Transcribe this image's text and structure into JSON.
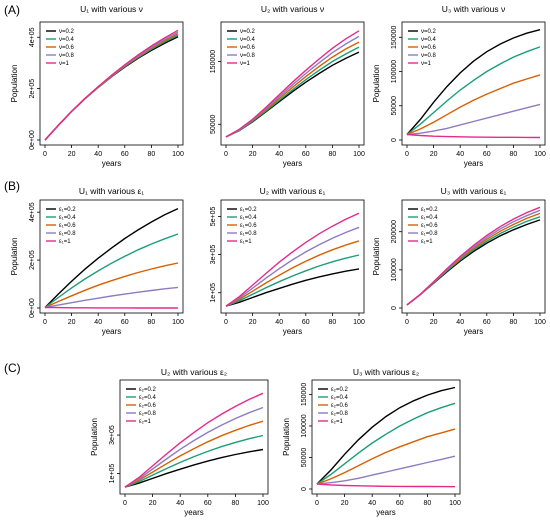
{
  "figure": {
    "rows": [
      {
        "label": "(A)"
      },
      {
        "label": "(B)"
      },
      {
        "label": "(C)"
      }
    ]
  },
  "legend_colors": [
    "#000000",
    "#1b9e77",
    "#d95f02",
    "#8e7cc3",
    "#e7298a"
  ],
  "chart_data": [
    {
      "type": "line",
      "panel": "A",
      "title": "U₁ with various ν",
      "xlabel": "years",
      "ylabel": "Population",
      "xlim": [
        0,
        100
      ],
      "ylim": [
        0,
        440000
      ],
      "xticks": [
        0,
        20,
        40,
        60,
        80,
        100
      ],
      "xtick_labels": [
        "0",
        "20",
        "40",
        "60",
        "80",
        "100"
      ],
      "yticks": [
        0,
        200000,
        400000
      ],
      "ytick_labels": [
        "0e+00",
        "2e+05",
        "4e+05"
      ],
      "x": [
        0,
        10,
        20,
        30,
        40,
        50,
        60,
        70,
        80,
        90,
        100
      ],
      "legend_placement": "top-left",
      "series": [
        {
          "name": "ν=0.2",
          "color": "#000000",
          "values": [
            0,
            57000,
            111000,
            160000,
            205000,
            246000,
            284000,
            318000,
            349000,
            377000,
            402000
          ]
        },
        {
          "name": "ν=0.4",
          "color": "#1b9e77",
          "values": [
            0,
            57000,
            111000,
            160000,
            205000,
            247000,
            286000,
            321000,
            353000,
            382000,
            408000
          ]
        },
        {
          "name": "ν=0.6",
          "color": "#d95f02",
          "values": [
            0,
            57000,
            111000,
            160000,
            206000,
            248000,
            288000,
            324000,
            357000,
            387000,
            414000
          ]
        },
        {
          "name": "ν=0.8",
          "color": "#8e7cc3",
          "values": [
            0,
            57000,
            111000,
            161000,
            207000,
            250000,
            290000,
            327000,
            361000,
            392000,
            420000
          ]
        },
        {
          "name": "ν=1",
          "color": "#e7298a",
          "values": [
            0,
            57000,
            112000,
            162000,
            208000,
            252000,
            293000,
            331000,
            366000,
            398000,
            427000
          ]
        }
      ]
    },
    {
      "type": "line",
      "panel": "A",
      "title": "U₂ with various ν",
      "xlabel": "years",
      "ylabel": "",
      "xlim": [
        0,
        100
      ],
      "ylim": [
        25000,
        205000
      ],
      "xticks": [
        0,
        20,
        40,
        60,
        80,
        100
      ],
      "xtick_labels": [
        "0",
        "20",
        "40",
        "60",
        "80",
        "100"
      ],
      "yticks": [
        50000,
        150000
      ],
      "ytick_labels": [
        "50000",
        "150000"
      ],
      "x": [
        0,
        10,
        20,
        30,
        40,
        50,
        60,
        70,
        80,
        90,
        100
      ],
      "legend_placement": "top-left",
      "series": [
        {
          "name": "ν=0.2",
          "color": "#000000",
          "values": [
            30000,
            40000,
            54000,
            70000,
            86000,
            102000,
            117000,
            131000,
            144000,
            155000,
            165000
          ]
        },
        {
          "name": "ν=0.4",
          "color": "#1b9e77",
          "values": [
            30000,
            40000,
            55000,
            71000,
            88000,
            105000,
            121000,
            136000,
            150000,
            162000,
            173000
          ]
        },
        {
          "name": "ν=0.6",
          "color": "#d95f02",
          "values": [
            30000,
            41000,
            56000,
            73000,
            91000,
            109000,
            126000,
            142000,
            157000,
            170000,
            181000
          ]
        },
        {
          "name": "ν=0.8",
          "color": "#8e7cc3",
          "values": [
            30000,
            41000,
            57000,
            75000,
            94000,
            113000,
            131000,
            148000,
            164000,
            178000,
            190000
          ]
        },
        {
          "name": "ν=1",
          "color": "#e7298a",
          "values": [
            30000,
            42000,
            58000,
            77000,
            97000,
            117000,
            136000,
            154000,
            171000,
            186000,
            199000
          ]
        }
      ]
    },
    {
      "type": "line",
      "panel": "A",
      "title": "U₃ with various ν",
      "xlabel": "years",
      "ylabel": "Population",
      "xlim": [
        0,
        100
      ],
      "ylim": [
        0,
        165000
      ],
      "xticks": [
        0,
        20,
        40,
        60,
        80,
        100
      ],
      "xtick_labels": [
        "0",
        "20",
        "40",
        "60",
        "80",
        "100"
      ],
      "yticks": [
        0,
        50000,
        100000,
        150000
      ],
      "ytick_labels": [
        "0",
        "50000",
        "100000",
        "150000"
      ],
      "x": [
        0,
        10,
        20,
        30,
        40,
        50,
        60,
        70,
        80,
        90,
        100
      ],
      "legend_placement": "top-left",
      "series": [
        {
          "name": "ν=0.2",
          "color": "#000000",
          "values": [
            8000,
            30000,
            55000,
            78000,
            98000,
            115000,
            129000,
            140000,
            149000,
            156000,
            161000
          ]
        },
        {
          "name": "ν=0.4",
          "color": "#1b9e77",
          "values": [
            8000,
            23000,
            40000,
            57000,
            73000,
            87000,
            100000,
            111000,
            121000,
            129000,
            136000
          ]
        },
        {
          "name": "ν=0.6",
          "color": "#d95f02",
          "values": [
            8000,
            16000,
            26000,
            37000,
            48000,
            58000,
            67000,
            75000,
            83000,
            89000,
            95000
          ]
        },
        {
          "name": "ν=0.8",
          "color": "#8e7cc3",
          "values": [
            8000,
            10000,
            13000,
            17000,
            22000,
            27000,
            32000,
            37000,
            42000,
            47000,
            52000
          ]
        },
        {
          "name": "ν=1",
          "color": "#e7298a",
          "values": [
            8000,
            6500,
            5500,
            5000,
            4600,
            4300,
            4100,
            4000,
            3900,
            3800,
            3700
          ]
        }
      ]
    },
    {
      "type": "line",
      "panel": "B",
      "title": "U₁ with various ε₁",
      "xlabel": "years",
      "ylabel": "Population",
      "xlim": [
        0,
        100
      ],
      "ylim": [
        0,
        430000
      ],
      "xticks": [
        0,
        20,
        40,
        60,
        80,
        100
      ],
      "xtick_labels": [
        "0",
        "20",
        "40",
        "60",
        "80",
        "100"
      ],
      "yticks": [
        0,
        200000,
        400000
      ],
      "ytick_labels": [
        "0e+00",
        "2e+05",
        "4e+05"
      ],
      "x": [
        0,
        10,
        20,
        30,
        40,
        50,
        60,
        70,
        80,
        90,
        100
      ],
      "legend_placement": "top-left",
      "series": [
        {
          "name": "ε₁=0.2",
          "color": "#000000",
          "values": [
            2000,
            58000,
            112000,
            162000,
            208000,
            250000,
            290000,
            326000,
            359000,
            389000,
            415000
          ]
        },
        {
          "name": "ε₁=0.4",
          "color": "#1b9e77",
          "values": [
            2000,
            44000,
            84000,
            121000,
            155000,
            187000,
            216000,
            243000,
            267000,
            289000,
            309000
          ]
        },
        {
          "name": "ε₁=0.6",
          "color": "#d95f02",
          "values": [
            2000,
            27000,
            51000,
            74000,
            95000,
            114000,
            132000,
            148000,
            163000,
            176000,
            188000
          ]
        },
        {
          "name": "ε₁=0.8",
          "color": "#8e7cc3",
          "values": [
            2000,
            12000,
            22000,
            32000,
            41000,
            50000,
            58000,
            66000,
            73000,
            80000,
            86000
          ]
        },
        {
          "name": "ε₁=1",
          "color": "#e7298a",
          "values": [
            2000,
            1500,
            1000,
            700,
            500,
            400,
            300,
            200,
            200,
            100,
            100
          ]
        }
      ]
    },
    {
      "type": "line",
      "panel": "B",
      "title": "U₂ with various ε₁",
      "xlabel": "years",
      "ylabel": "",
      "xlim": [
        0,
        100
      ],
      "ylim": [
        20000,
        560000
      ],
      "xticks": [
        0,
        20,
        40,
        60,
        80,
        100
      ],
      "xtick_labels": [
        "0",
        "20",
        "40",
        "60",
        "80",
        "100"
      ],
      "yticks": [
        100000,
        300000,
        500000
      ],
      "ytick_labels": [
        "1e+05",
        "3e+05",
        "5e+05"
      ],
      "x": [
        0,
        10,
        20,
        30,
        40,
        50,
        60,
        70,
        80,
        90,
        100
      ],
      "legend_placement": "top-left",
      "series": [
        {
          "name": "ε₁=0.2",
          "color": "#000000",
          "values": [
            30000,
            50000,
            75000,
            100000,
            123000,
            145000,
            165000,
            183000,
            199000,
            213000,
            225000
          ]
        },
        {
          "name": "ε₁=0.4",
          "color": "#1b9e77",
          "values": [
            30000,
            58000,
            92000,
            126000,
            158000,
            188000,
            215000,
            240000,
            262000,
            281000,
            298000
          ]
        },
        {
          "name": "ε₁=0.6",
          "color": "#d95f02",
          "values": [
            30000,
            65000,
            108000,
            151000,
            192000,
            230000,
            265000,
            297000,
            325000,
            350000,
            372000
          ]
        },
        {
          "name": "ε₁=0.8",
          "color": "#8e7cc3",
          "values": [
            30000,
            72000,
            124000,
            176000,
            226000,
            272000,
            314000,
            352000,
            386000,
            416000,
            443000
          ]
        },
        {
          "name": "ε₁=1",
          "color": "#e7298a",
          "values": [
            30000,
            79000,
            140000,
            201000,
            260000,
            314000,
            364000,
            409000,
            449000,
            485000,
            517000
          ]
        }
      ]
    },
    {
      "type": "line",
      "panel": "B",
      "title": "U₃ with various ε₁",
      "xlabel": "years",
      "ylabel": "Population",
      "xlim": [
        0,
        100
      ],
      "ylim": [
        0,
        270000
      ],
      "xticks": [
        0,
        20,
        40,
        60,
        80,
        100
      ],
      "xtick_labels": [
        "0",
        "20",
        "40",
        "60",
        "80",
        "100"
      ],
      "yticks": [
        0,
        100000,
        200000
      ],
      "ytick_labels": [
        "0",
        "100000",
        "200000"
      ],
      "x": [
        0,
        10,
        20,
        30,
        40,
        50,
        60,
        70,
        80,
        90,
        100
      ],
      "legend_placement": "top-left",
      "series": [
        {
          "name": "ε₁=0.2",
          "color": "#000000",
          "values": [
            8000,
            35000,
            65000,
            95000,
            123000,
            148000,
            170000,
            189000,
            205000,
            219000,
            231000
          ]
        },
        {
          "name": "ε₁=0.4",
          "color": "#1b9e77",
          "values": [
            8000,
            35000,
            66000,
            97000,
            126000,
            152000,
            175000,
            195000,
            212000,
            227000,
            239000
          ]
        },
        {
          "name": "ε₁=0.6",
          "color": "#d95f02",
          "values": [
            8000,
            35000,
            67000,
            99000,
            129000,
            156000,
            180000,
            201000,
            219000,
            235000,
            248000
          ]
        },
        {
          "name": "ε₁=0.8",
          "color": "#8e7cc3",
          "values": [
            8000,
            35000,
            68000,
            101000,
            132000,
            160000,
            185000,
            207000,
            226000,
            242000,
            256000
          ]
        },
        {
          "name": "ε₁=1",
          "color": "#e7298a",
          "values": [
            8000,
            36000,
            69000,
            103000,
            135000,
            164000,
            190000,
            213000,
            233000,
            250000,
            264000
          ]
        }
      ]
    },
    {
      "type": "line",
      "panel": "C",
      "title": "U₂ with various ε₂",
      "xlabel": "years",
      "ylabel": "Population",
      "xlim": [
        0,
        100
      ],
      "ylim": [
        20000,
        560000
      ],
      "xticks": [
        0,
        20,
        40,
        60,
        80,
        100
      ],
      "xtick_labels": [
        "0",
        "20",
        "40",
        "60",
        "80",
        "100"
      ],
      "yticks": [
        100000,
        300000
      ],
      "ytick_labels": [
        "1e+05",
        "3e+05"
      ],
      "x": [
        0,
        10,
        20,
        30,
        40,
        50,
        60,
        70,
        80,
        90,
        100
      ],
      "legend_placement": "top-left",
      "series": [
        {
          "name": "ε₂=0.2",
          "color": "#000000",
          "values": [
            30000,
            50000,
            75000,
            100000,
            123000,
            145000,
            165000,
            183000,
            199000,
            213000,
            225000
          ]
        },
        {
          "name": "ε₂=0.4",
          "color": "#1b9e77",
          "values": [
            30000,
            58000,
            92000,
            126000,
            158000,
            188000,
            215000,
            240000,
            262000,
            281000,
            298000
          ]
        },
        {
          "name": "ε₂=0.6",
          "color": "#d95f02",
          "values": [
            30000,
            65000,
            108000,
            151000,
            192000,
            230000,
            265000,
            297000,
            325000,
            350000,
            372000
          ]
        },
        {
          "name": "ε₂=0.8",
          "color": "#8e7cc3",
          "values": [
            30000,
            72000,
            124000,
            176000,
            226000,
            272000,
            314000,
            352000,
            386000,
            416000,
            443000
          ]
        },
        {
          "name": "ε₂=1",
          "color": "#e7298a",
          "values": [
            30000,
            79000,
            140000,
            201000,
            260000,
            314000,
            364000,
            409000,
            449000,
            485000,
            517000
          ]
        }
      ]
    },
    {
      "type": "line",
      "panel": "C",
      "title": "U₃ with various ε₂",
      "xlabel": "years",
      "ylabel": "Population",
      "xlim": [
        0,
        100
      ],
      "ylim": [
        0,
        165000
      ],
      "xticks": [
        0,
        20,
        40,
        60,
        80,
        100
      ],
      "xtick_labels": [
        "0",
        "20",
        "40",
        "60",
        "80",
        "100"
      ],
      "yticks": [
        0,
        50000,
        100000,
        150000
      ],
      "ytick_labels": [
        "0",
        "50000",
        "100000",
        "150000"
      ],
      "x": [
        0,
        10,
        20,
        30,
        40,
        50,
        60,
        70,
        80,
        90,
        100
      ],
      "legend_placement": "top-left",
      "series": [
        {
          "name": "ε₂=0.2",
          "color": "#000000",
          "values": [
            8000,
            30000,
            55000,
            78000,
            98000,
            115000,
            129000,
            140000,
            149000,
            156000,
            161000
          ]
        },
        {
          "name": "ε₂=0.4",
          "color": "#1b9e77",
          "values": [
            8000,
            23000,
            40000,
            57000,
            73000,
            87000,
            100000,
            111000,
            121000,
            129000,
            136000
          ]
        },
        {
          "name": "ε₂=0.6",
          "color": "#d95f02",
          "values": [
            8000,
            16000,
            26000,
            37000,
            48000,
            58000,
            67000,
            75000,
            83000,
            89000,
            95000
          ]
        },
        {
          "name": "ε₂=0.8",
          "color": "#8e7cc3",
          "values": [
            8000,
            10000,
            13000,
            17000,
            22000,
            27000,
            32000,
            37000,
            42000,
            47000,
            52000
          ]
        },
        {
          "name": "ε₂=1",
          "color": "#e7298a",
          "values": [
            8000,
            6500,
            5500,
            5000,
            4600,
            4300,
            4100,
            4000,
            3900,
            3800,
            3700
          ]
        }
      ]
    }
  ]
}
